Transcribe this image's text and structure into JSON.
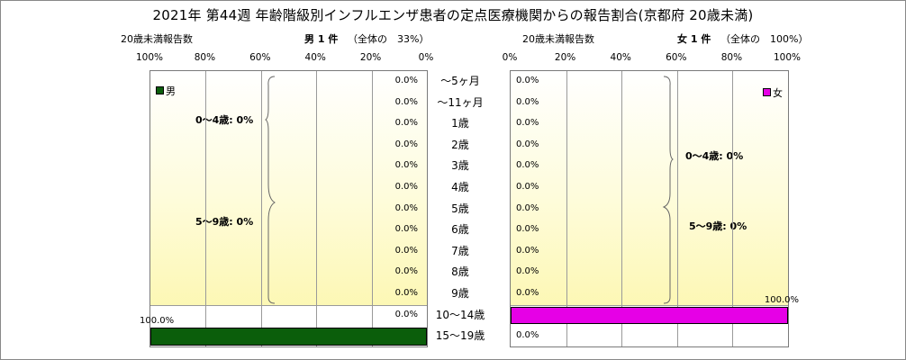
{
  "title": "2021年 第44週 年齢階級別インフルエンザ患者の定点医療機関からの報告割合(京都府 20歳未満)",
  "male": {
    "axis_caption": "20歳未満報告数",
    "count_label": "男 1 件",
    "share_label": "（全体の　33%）",
    "legend": "男",
    "color": "#0b5e0b"
  },
  "female": {
    "axis_caption": "20歳未満報告数",
    "count_label": "女 1 件",
    "share_label": "（全体の　100%）",
    "legend": "女",
    "color": "#e600e6"
  },
  "male_ticks": [
    "100%",
    "80%",
    "60%",
    "40%",
    "20%",
    "0%"
  ],
  "female_ticks": [
    "0%",
    "20%",
    "40%",
    "60%",
    "80%",
    "100%"
  ],
  "groups": {
    "male": [
      "0～4歳: 0%",
      "5～9歳: 0%"
    ],
    "female": [
      "0～4歳: 0%",
      "5～9歳: 0%"
    ]
  },
  "chart_data": {
    "type": "bar",
    "title": "2021年 第44週 年齢階級別インフルエンザ患者の定点医療機関からの報告割合(京都府 20歳未満)",
    "categories": [
      "～5ヶ月",
      "～11ヶ月",
      "1歳",
      "2歳",
      "3歳",
      "4歳",
      "5歳",
      "6歳",
      "7歳",
      "8歳",
      "9歳",
      "10～14歳",
      "15～19歳"
    ],
    "series": [
      {
        "name": "男",
        "values": [
          0,
          0,
          0,
          0,
          0,
          0,
          0,
          0,
          0,
          0,
          0,
          0,
          100
        ],
        "labels": [
          "0.0%",
          "0.0%",
          "0.0%",
          "0.0%",
          "0.0%",
          "0.0%",
          "0.0%",
          "0.0%",
          "0.0%",
          "0.0%",
          "0.0%",
          "0.0%",
          "100.0%"
        ]
      },
      {
        "name": "女",
        "values": [
          0,
          0,
          0,
          0,
          0,
          0,
          0,
          0,
          0,
          0,
          0,
          100,
          0
        ],
        "labels": [
          "0.0%",
          "0.0%",
          "0.0%",
          "0.0%",
          "0.0%",
          "0.0%",
          "0.0%",
          "0.0%",
          "0.0%",
          "0.0%",
          "0.0%",
          "100.0%",
          "0.0%"
        ]
      }
    ],
    "xlim": [
      0,
      100
    ],
    "grid": true,
    "legend": "top"
  }
}
